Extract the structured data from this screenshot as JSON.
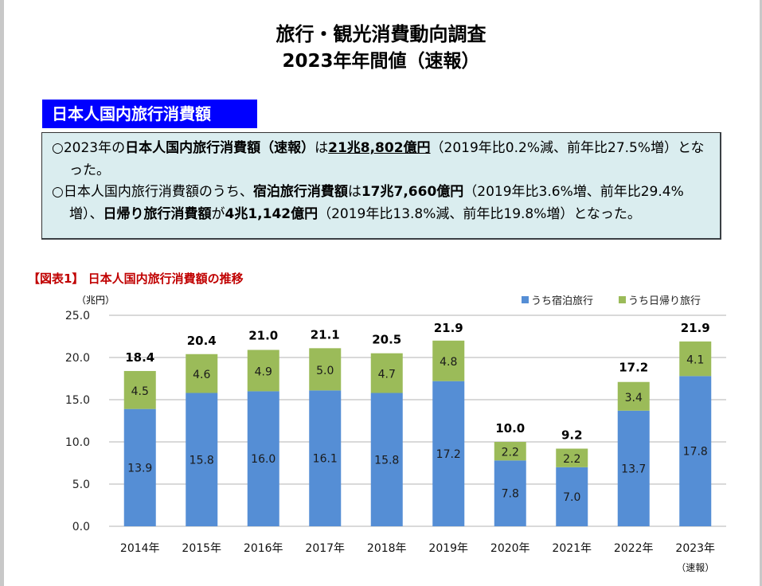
{
  "page": {
    "title_line1": "旅行・観光消費動向調査",
    "title_line2": "2023年年間値（速報）"
  },
  "section": {
    "header": "日本人国内旅行消費額"
  },
  "summary": {
    "p1": {
      "a": "○2023年の",
      "b": "日本人国内旅行消費額（速報）",
      "c": "は",
      "d": "21兆8,802億円",
      "e": "（2019年比0.2%減、前年比27.5%増）となった。"
    },
    "p2": {
      "a": "○日本人国内旅行消費額のうち、",
      "b": "宿泊旅行消費額",
      "c": "は",
      "d": "17兆7,660億円",
      "e": "（2019年比3.6%増、前年比29.4%増）、",
      "f": "日帰り旅行消費額",
      "g": "が",
      "h": "4兆1,142億円",
      "i": "（2019年比13.8%減、前年比19.8%増）となった。"
    }
  },
  "colors": {
    "overnight": "#558ed5",
    "day_trip": "#9bbb59",
    "header_bg": "#0000ff",
    "chart_title": "#c00000",
    "summary_bg": "#daedef"
  },
  "chart_data": {
    "type": "bar",
    "stacked": true,
    "title": "【図表1】 日本人国内旅行消費額の推移",
    "ylabel": "（兆円）",
    "xlabel": "",
    "ylim": [
      0,
      25
    ],
    "yticks": [
      "0.0",
      "5.0",
      "10.0",
      "15.0",
      "20.0",
      "25.0"
    ],
    "ytick_values": [
      0,
      5,
      10,
      15,
      20,
      25
    ],
    "grid": true,
    "legend_position": "top-right",
    "categories": [
      "2014年",
      "2015年",
      "2016年",
      "2017年",
      "2018年",
      "2019年",
      "2020年",
      "2021年",
      "2022年",
      "2023年"
    ],
    "category_notes": [
      "",
      "",
      "",
      "",
      "",
      "",
      "",
      "",
      "",
      "（速報）"
    ],
    "series": [
      {
        "name": "うち宿泊旅行",
        "values": [
          13.9,
          15.8,
          16.0,
          16.1,
          15.8,
          17.2,
          7.8,
          7.0,
          13.7,
          17.8
        ],
        "labels": [
          "13.9",
          "15.8",
          "16.0",
          "16.1",
          "15.8",
          "17.2",
          "7.8",
          "7.0",
          "13.7",
          "17.8"
        ]
      },
      {
        "name": "うち日帰り旅行",
        "values": [
          4.5,
          4.6,
          4.9,
          5.0,
          4.7,
          4.8,
          2.2,
          2.2,
          3.4,
          4.1
        ],
        "labels": [
          "4.5",
          "4.6",
          "4.9",
          "5.0",
          "4.7",
          "4.8",
          "2.2",
          "2.2",
          "3.4",
          "4.1"
        ]
      }
    ],
    "totals": [
      18.4,
      20.4,
      21.0,
      21.1,
      20.5,
      21.9,
      10.0,
      9.2,
      17.2,
      21.9
    ],
    "total_labels": [
      "18.4",
      "20.4",
      "21.0",
      "21.1",
      "20.5",
      "21.9",
      "10.0",
      "9.2",
      "17.2",
      "21.9"
    ]
  }
}
